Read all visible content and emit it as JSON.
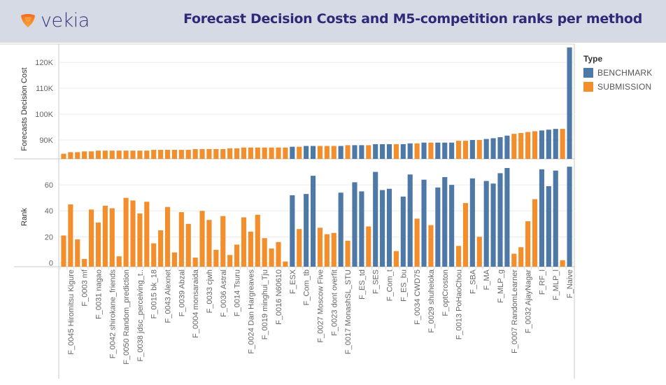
{
  "header": {
    "brand": "vekia",
    "title": "Forecast Decision Costs and M5-competition ranks per method"
  },
  "colors": {
    "BENCHMARK": "#4e79a7",
    "SUBMISSION": "#f28e2b",
    "brand_icon": "#f07a22",
    "title": "#2d2a7a"
  },
  "legend": {
    "title": "Type",
    "items": [
      {
        "label": "BENCHMARK"
      },
      {
        "label": "SUBMISSION"
      }
    ]
  },
  "chart_data": [
    {
      "type": "bar",
      "title": "Forecasts Decision Cost",
      "ylabel": "Forecasts Decision Cost",
      "ylim": [
        82700,
        126000
      ],
      "yticks": [
        90000,
        100000,
        110000,
        120000
      ],
      "ytick_labels": [
        "90K",
        "100K",
        "110K",
        "120K"
      ],
      "grid": true,
      "legend_position": "right"
    },
    {
      "type": "bar",
      "title": "Rank",
      "ylabel": "Rank",
      "ylim": [
        -3,
        80
      ],
      "yticks": [
        0,
        20,
        40,
        60
      ],
      "ytick_labels": [
        "0",
        "20",
        "40",
        "60"
      ],
      "grid": true
    }
  ],
  "methods": [
    {
      "name": "",
      "type": "SUBMISSION",
      "cost": 84700,
      "rank": 21
    },
    {
      "name": "F_0045 Hiromitsu Kigure",
      "type": "SUBMISSION",
      "cost": 85300,
      "rank": 45
    },
    {
      "name": "",
      "type": "SUBMISSION",
      "cost": 85300,
      "rank": 18
    },
    {
      "name": "F_0003 mf",
      "type": "SUBMISSION",
      "cost": 85600,
      "rank": 3
    },
    {
      "name": "",
      "type": "SUBMISSION",
      "cost": 85600,
      "rank": 41
    },
    {
      "name": "F_0031 nagao",
      "type": "SUBMISSION",
      "cost": 85900,
      "rank": 31
    },
    {
      "name": "",
      "type": "SUBMISSION",
      "cost": 85900,
      "rank": 44
    },
    {
      "name": "F_0042 shirokane_friends",
      "type": "SUBMISSION",
      "cost": 85900,
      "rank": 42
    },
    {
      "name": "",
      "type": "SUBMISSION",
      "cost": 85900,
      "rank": 5
    },
    {
      "name": "F_0050 Random_prediction",
      "type": "SUBMISSION",
      "cost": 85900,
      "rank": 50
    },
    {
      "name": "",
      "type": "SUBMISSION",
      "cost": 85900,
      "rank": 48
    },
    {
      "name": "F_0038 jdsc_perceiving_t..",
      "type": "SUBMISSION",
      "cost": 85900,
      "rank": 38
    },
    {
      "name": "",
      "type": "SUBMISSION",
      "cost": 85900,
      "rank": 47
    },
    {
      "name": "F_0015 bk_18",
      "type": "SUBMISSION",
      "cost": 86200,
      "rank": 15
    },
    {
      "name": "",
      "type": "SUBMISSION",
      "cost": 86200,
      "rank": 25
    },
    {
      "name": "F_0043 Alexnet",
      "type": "SUBMISSION",
      "cost": 86200,
      "rank": 43
    },
    {
      "name": "",
      "type": "SUBMISSION",
      "cost": 86200,
      "rank": 8
    },
    {
      "name": "F_0039 Abzal",
      "type": "SUBMISSION",
      "cost": 86200,
      "rank": 39
    },
    {
      "name": "",
      "type": "SUBMISSION",
      "cost": 86200,
      "rank": 30
    },
    {
      "name": "F_0004 monsaraida",
      "type": "SUBMISSION",
      "cost": 86500,
      "rank": 4
    },
    {
      "name": "",
      "type": "SUBMISSION",
      "cost": 86500,
      "rank": 40
    },
    {
      "name": "F_0033 cjwh",
      "type": "SUBMISSION",
      "cost": 86500,
      "rank": 33
    },
    {
      "name": "",
      "type": "SUBMISSION",
      "cost": 86500,
      "rank": 10
    },
    {
      "name": "F_0036 Astral",
      "type": "SUBMISSION",
      "cost": 86500,
      "rank": 36
    },
    {
      "name": "",
      "type": "SUBMISSION",
      "cost": 86800,
      "rank": 6
    },
    {
      "name": "F_0014 Tsuru",
      "type": "SUBMISSION",
      "cost": 86800,
      "rank": 14
    },
    {
      "name": "",
      "type": "SUBMISSION",
      "cost": 87100,
      "rank": 35
    },
    {
      "name": "F_0024 Dan Hargreaves",
      "type": "SUBMISSION",
      "cost": 87100,
      "rank": 24
    },
    {
      "name": "",
      "type": "SUBMISSION",
      "cost": 87100,
      "rank": 37
    },
    {
      "name": "F_0019 minghui_Tju",
      "type": "SUBMISSION",
      "cost": 87100,
      "rank": 19
    },
    {
      "name": "",
      "type": "SUBMISSION",
      "cost": 87100,
      "rank": 11
    },
    {
      "name": "F_0016 N60610",
      "type": "SUBMISSION",
      "cost": 87100,
      "rank": 16
    },
    {
      "name": "",
      "type": "SUBMISSION",
      "cost": 87100,
      "rank": 1
    },
    {
      "name": "F_ESX",
      "type": "BENCHMARK",
      "cost": 87400,
      "rank": 52
    },
    {
      "name": "",
      "type": "SUBMISSION",
      "cost": 87400,
      "rank": 26
    },
    {
      "name": "F_Com_tb",
      "type": "BENCHMARK",
      "cost": 87700,
      "rank": 53
    },
    {
      "name": "",
      "type": "BENCHMARK",
      "cost": 87700,
      "rank": 67
    },
    {
      "name": "F_0027 Moscow Five",
      "type": "SUBMISSION",
      "cost": 87700,
      "rank": 27
    },
    {
      "name": "",
      "type": "SUBMISSION",
      "cost": 87700,
      "rank": 22
    },
    {
      "name": "F_0023 dont overfit",
      "type": "SUBMISSION",
      "cost": 87700,
      "rank": 23
    },
    {
      "name": "",
      "type": "BENCHMARK",
      "cost": 87700,
      "rank": 54
    },
    {
      "name": "F_0017 MonashSL_STU",
      "type": "SUBMISSION",
      "cost": 88000,
      "rank": 17
    },
    {
      "name": "",
      "type": "BENCHMARK",
      "cost": 88000,
      "rank": 62
    },
    {
      "name": "F_ES_td",
      "type": "BENCHMARK",
      "cost": 88000,
      "rank": 55
    },
    {
      "name": "",
      "type": "SUBMISSION",
      "cost": 88000,
      "rank": 28
    },
    {
      "name": "F_SES",
      "type": "BENCHMARK",
      "cost": 88400,
      "rank": 70
    },
    {
      "name": "",
      "type": "BENCHMARK",
      "cost": 88400,
      "rank": 56
    },
    {
      "name": "F_Com_t",
      "type": "BENCHMARK",
      "cost": 88400,
      "rank": 57
    },
    {
      "name": "",
      "type": "SUBMISSION",
      "cost": 88400,
      "rank": 9
    },
    {
      "name": "F_ES_bu",
      "type": "BENCHMARK",
      "cost": 88400,
      "rank": 51
    },
    {
      "name": "",
      "type": "BENCHMARK",
      "cost": 88700,
      "rank": 68
    },
    {
      "name": "F_0034 CWD75",
      "type": "SUBMISSION",
      "cost": 88700,
      "rank": 34
    },
    {
      "name": "",
      "type": "BENCHMARK",
      "cost": 89000,
      "rank": 64
    },
    {
      "name": "F_0029 shuheioka",
      "type": "SUBMISSION",
      "cost": 89000,
      "rank": 29
    },
    {
      "name": "",
      "type": "BENCHMARK",
      "cost": 89000,
      "rank": 58
    },
    {
      "name": "F_optCroston",
      "type": "BENCHMARK",
      "cost": 89000,
      "rank": 66
    },
    {
      "name": "",
      "type": "BENCHMARK",
      "cost": 89000,
      "rank": 60
    },
    {
      "name": "F_0013 PoHaoChou",
      "type": "SUBMISSION",
      "cost": 89700,
      "rank": 13
    },
    {
      "name": "",
      "type": "SUBMISSION",
      "cost": 89700,
      "rank": 46
    },
    {
      "name": "F_SBA",
      "type": "BENCHMARK",
      "cost": 90000,
      "rank": 65
    },
    {
      "name": "",
      "type": "SUBMISSION",
      "cost": 90000,
      "rank": 20
    },
    {
      "name": "F_MA",
      "type": "BENCHMARK",
      "cost": 90400,
      "rank": 63
    },
    {
      "name": "",
      "type": "BENCHMARK",
      "cost": 90700,
      "rank": 61
    },
    {
      "name": "F_MLP_g",
      "type": "BENCHMARK",
      "cost": 91100,
      "rank": 69
    },
    {
      "name": "",
      "type": "BENCHMARK",
      "cost": 91700,
      "rank": 73
    },
    {
      "name": "F_0007 RandomLearner",
      "type": "SUBMISSION",
      "cost": 92400,
      "rank": 7
    },
    {
      "name": "",
      "type": "SUBMISSION",
      "cost": 92700,
      "rank": 12
    },
    {
      "name": "F_0032 AjayNagar",
      "type": "SUBMISSION",
      "cost": 93100,
      "rank": 32
    },
    {
      "name": "",
      "type": "SUBMISSION",
      "cost": 93400,
      "rank": 49
    },
    {
      "name": "F_RF_l",
      "type": "BENCHMARK",
      "cost": 93700,
      "rank": 72
    },
    {
      "name": "",
      "type": "BENCHMARK",
      "cost": 94000,
      "rank": 59
    },
    {
      "name": "F_MLP_l",
      "type": "BENCHMARK",
      "cost": 94300,
      "rank": 71
    },
    {
      "name": "",
      "type": "SUBMISSION",
      "cost": 94300,
      "rank": 2
    },
    {
      "name": "F_Naive",
      "type": "BENCHMARK",
      "cost": 125800,
      "rank": 74
    }
  ]
}
